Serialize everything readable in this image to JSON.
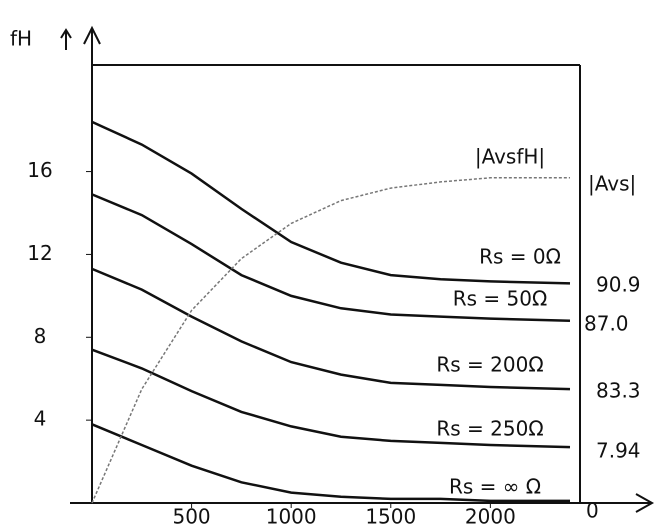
{
  "chart_data": {
    "type": "line",
    "y_label": "fH",
    "right_title": "|Avs|",
    "x": [
      0,
      250,
      500,
      750,
      1000,
      1250,
      1500,
      1750,
      2000,
      2400
    ],
    "xlim": [
      0,
      2450
    ],
    "xticks": [
      500,
      1000,
      1500,
      2000
    ],
    "ylim": [
      0,
      21
    ],
    "yticks": [
      4,
      8,
      12,
      16
    ],
    "series": [
      {
        "name": "Rs = 0Ω",
        "right_label": "90.9",
        "color": "#111111",
        "values": [
          18.4,
          17.3,
          15.9,
          14.2,
          12.6,
          11.6,
          11.0,
          10.8,
          10.7,
          10.6
        ]
      },
      {
        "name": "Rs = 50Ω",
        "right_label": "87.0",
        "color": "#111111",
        "values": [
          14.9,
          13.9,
          12.5,
          11.0,
          10.0,
          9.4,
          9.1,
          9.0,
          8.9,
          8.8
        ]
      },
      {
        "name": "Rs = 200Ω",
        "right_label": "83.3",
        "color": "#111111",
        "values": [
          11.3,
          10.3,
          9.0,
          7.8,
          6.8,
          6.2,
          5.8,
          5.7,
          5.6,
          5.5
        ]
      },
      {
        "name": "Rs = 250Ω",
        "right_label": "7.94",
        "color": "#111111",
        "values": [
          7.4,
          6.5,
          5.4,
          4.4,
          3.7,
          3.2,
          3.0,
          2.9,
          2.8,
          2.7
        ]
      },
      {
        "name": "Rs = ∞ Ω",
        "right_label": "0",
        "color": "#111111",
        "values": [
          3.8,
          2.8,
          1.8,
          1.0,
          0.5,
          0.3,
          0.2,
          0.2,
          0.1,
          0.1
        ]
      },
      {
        "name": "|AvsfH|",
        "color": "#777777",
        "dashed": true,
        "values": [
          0,
          5.5,
          9.3,
          11.8,
          13.5,
          14.6,
          15.2,
          15.5,
          15.7,
          15.7
        ]
      }
    ]
  }
}
